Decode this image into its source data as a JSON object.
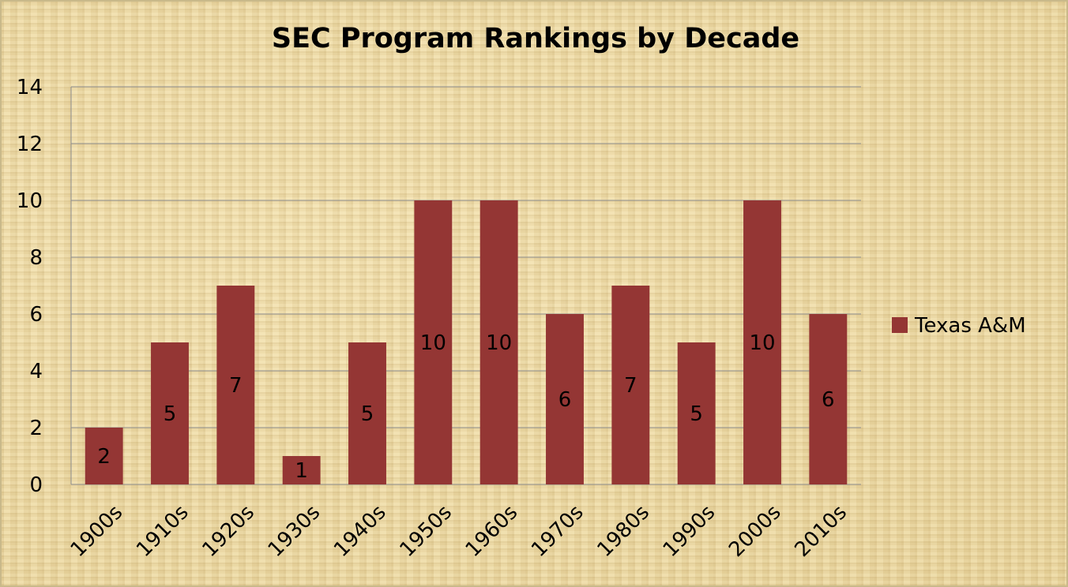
{
  "chart_data": {
    "type": "bar",
    "title": "SEC Program Rankings by Decade",
    "xlabel": "",
    "ylabel": "",
    "categories": [
      "1900s",
      "1910s",
      "1920s",
      "1930s",
      "1940s",
      "1950s",
      "1960s",
      "1970s",
      "1980s",
      "1990s",
      "2000s",
      "2010s"
    ],
    "series": [
      {
        "name": "Texas A&M",
        "values": [
          2,
          5,
          7,
          1,
          5,
          10,
          10,
          6,
          7,
          5,
          10,
          6
        ],
        "color": "#943634"
      }
    ],
    "ylim": [
      0,
      14
    ],
    "yticks": [
      0,
      2,
      4,
      6,
      8,
      10,
      12,
      14
    ],
    "grid": true,
    "legend": "right",
    "data_labels": true
  }
}
